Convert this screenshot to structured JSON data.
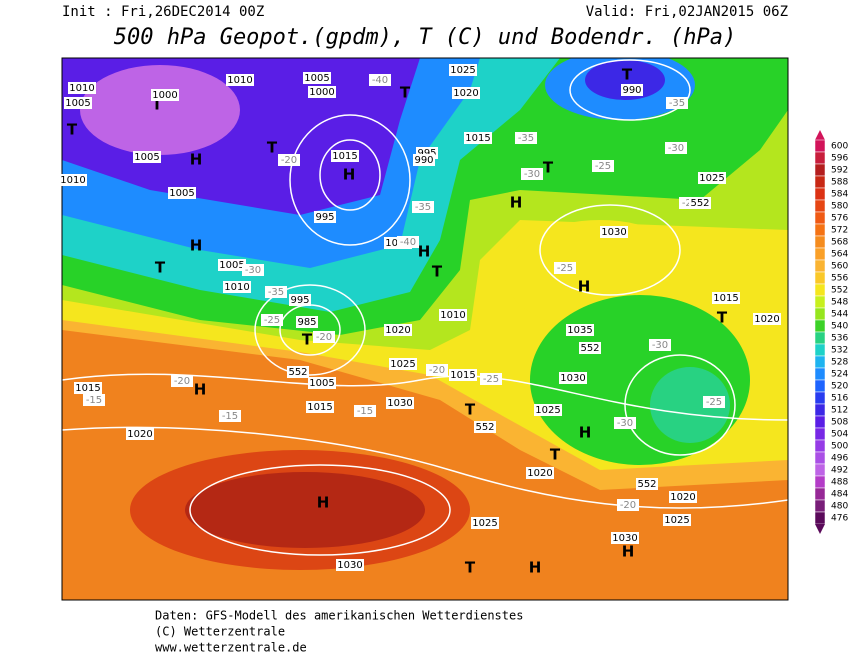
{
  "header": {
    "init": "Init : Fri,26DEC2014 00Z",
    "valid": "Valid: Fri,02JAN2015 06Z",
    "title": "500 hPa Geopot.(gpdm), T (C) und Bodendr. (hPa)"
  },
  "legend": {
    "levels": [
      600,
      596,
      592,
      588,
      584,
      580,
      576,
      572,
      568,
      564,
      560,
      556,
      552,
      548,
      544,
      540,
      536,
      532,
      528,
      524,
      520,
      516,
      512,
      508,
      504,
      500,
      496,
      492,
      488,
      484,
      480,
      476
    ],
    "colors": [
      "#d2145a",
      "#c81e3c",
      "#b41e1e",
      "#c82814",
      "#dc3214",
      "#e64614",
      "#f05a14",
      "#f57314",
      "#f58c1e",
      "#faa028",
      "#fab432",
      "#fac828",
      "#f5e61e",
      "#c8f01e",
      "#96e61e",
      "#3cd228",
      "#28d282",
      "#1ed2c8",
      "#1eb4f0",
      "#1e8cff",
      "#1e64ff",
      "#283cf0",
      "#3c28e6",
      "#5a1ee6",
      "#7828e6",
      "#963ce6",
      "#aa50e6",
      "#be64e6",
      "#b43cc8",
      "#962896",
      "#781e78",
      "#5a0a5a"
    ]
  },
  "map_labels": {
    "highs": [
      "H",
      "H",
      "H",
      "H",
      "H",
      "H",
      "H",
      "H",
      "H",
      "H",
      "H"
    ],
    "lows": [
      "T",
      "T",
      "T",
      "T",
      "T",
      "T",
      "T",
      "T",
      "T",
      "T",
      "T",
      "T",
      "T"
    ],
    "isobars": [
      "1010",
      "1010",
      "1010",
      "1010",
      "1010",
      "1005",
      "1005",
      "1005",
      "1005",
      "1005",
      "1005",
      "1000",
      "1000",
      "1000",
      "995",
      "995",
      "995",
      "1025",
      "1025",
      "1025",
      "1025",
      "1025",
      "1025",
      "1020",
      "1020",
      "1020",
      "1020",
      "1020",
      "1020",
      "1015",
      "1015",
      "1015",
      "1015",
      "1015",
      "1015",
      "1030",
      "1030",
      "1030",
      "1030",
      "1030",
      "1035",
      "990",
      "990",
      "985"
    ],
    "temperatures": [
      "-40",
      "-40",
      "-35",
      "-35",
      "-35",
      "-35",
      "-30",
      "-30",
      "-30",
      "-30",
      "-30",
      "-25",
      "-25",
      "-25",
      "-25",
      "-25",
      "-25",
      "-20",
      "-20",
      "-20",
      "-20",
      "-20",
      "-15",
      "-15",
      "-15"
    ],
    "heights": [
      "552",
      "552",
      "552",
      "552",
      "552"
    ]
  },
  "footer": {
    "source": "Daten: GFS-Modell des amerikanischen Wetterdienstes",
    "copyright": "(C) Wetterzentrale",
    "url": "www.wetterzentrale.de"
  }
}
